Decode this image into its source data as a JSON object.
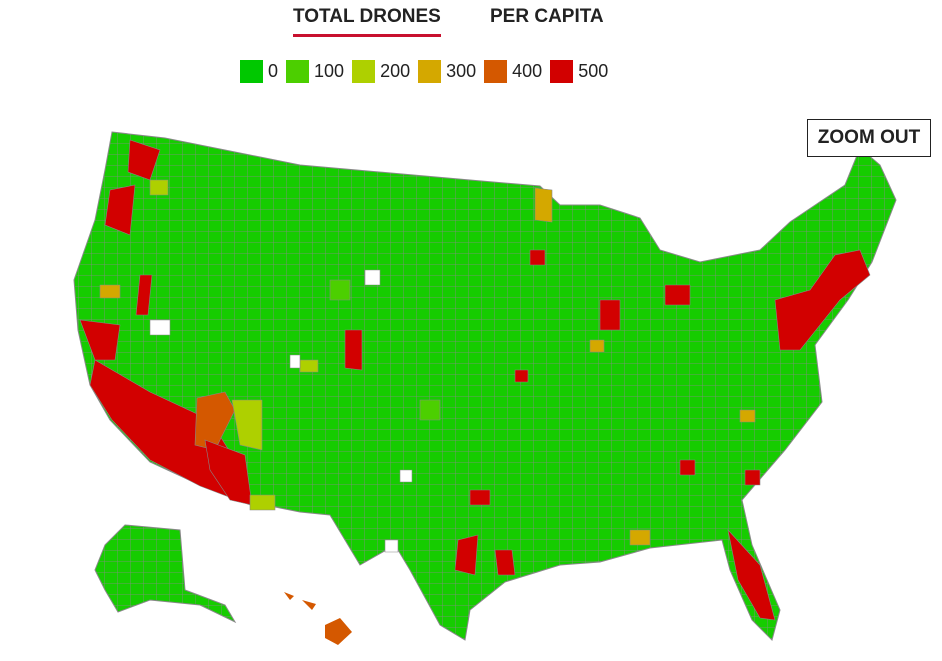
{
  "tabs": [
    {
      "label": "TOTAL DRONES",
      "active": true
    },
    {
      "label": "PER CAPITA",
      "active": false
    }
  ],
  "legend": [
    {
      "value": 0,
      "color": "#00c800"
    },
    {
      "value": 100,
      "color": "#4ccf00"
    },
    {
      "value": 200,
      "color": "#aed000"
    },
    {
      "value": 300,
      "color": "#d4a800"
    },
    {
      "value": 400,
      "color": "#d45800"
    },
    {
      "value": 500,
      "color": "#d20000"
    }
  ],
  "zoom_button": "ZOOM OUT"
}
